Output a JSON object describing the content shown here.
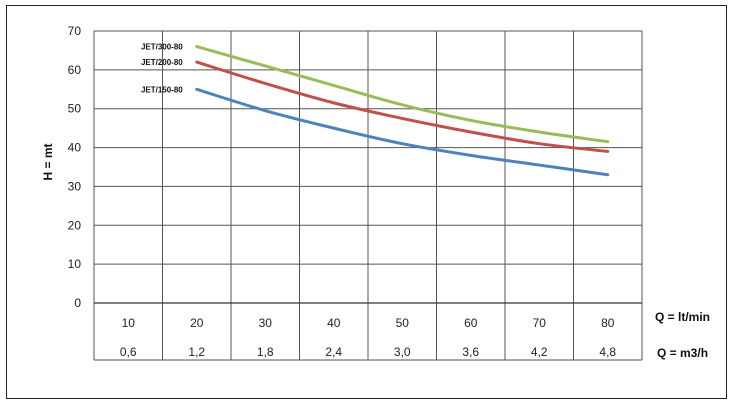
{
  "chart_data": {
    "type": "line",
    "title": "",
    "ylabel": "H = mt",
    "xlabel_lt": "Q = lt/min",
    "xlabel_m3": "Q = m3/h",
    "ylim": [
      0,
      70
    ],
    "y_ticks": [
      "0",
      "10",
      "20",
      "30",
      "40",
      "50",
      "60",
      "70"
    ],
    "categories_lt": [
      "10",
      "20",
      "30",
      "40",
      "50",
      "60",
      "70",
      "80"
    ],
    "categories_m3": [
      "0,6",
      "1,2",
      "1,8",
      "2,4",
      "3,0",
      "3,6",
      "4,2",
      "4,8"
    ],
    "x": [
      20,
      30,
      40,
      50,
      60,
      70,
      80
    ],
    "grid": true,
    "series": [
      {
        "name": "JET/300-80",
        "color": "#9bbb59",
        "values": [
          66,
          61,
          56,
          51,
          47,
          44,
          41.5
        ]
      },
      {
        "name": "JET/200-80",
        "color": "#c0504d",
        "values": [
          62,
          56.5,
          51.5,
          47.5,
          44,
          41,
          39
        ]
      },
      {
        "name": "JET/150-80",
        "color": "#4f81bd",
        "values": [
          55,
          49.5,
          45,
          41,
          38,
          35.5,
          33
        ]
      }
    ]
  }
}
